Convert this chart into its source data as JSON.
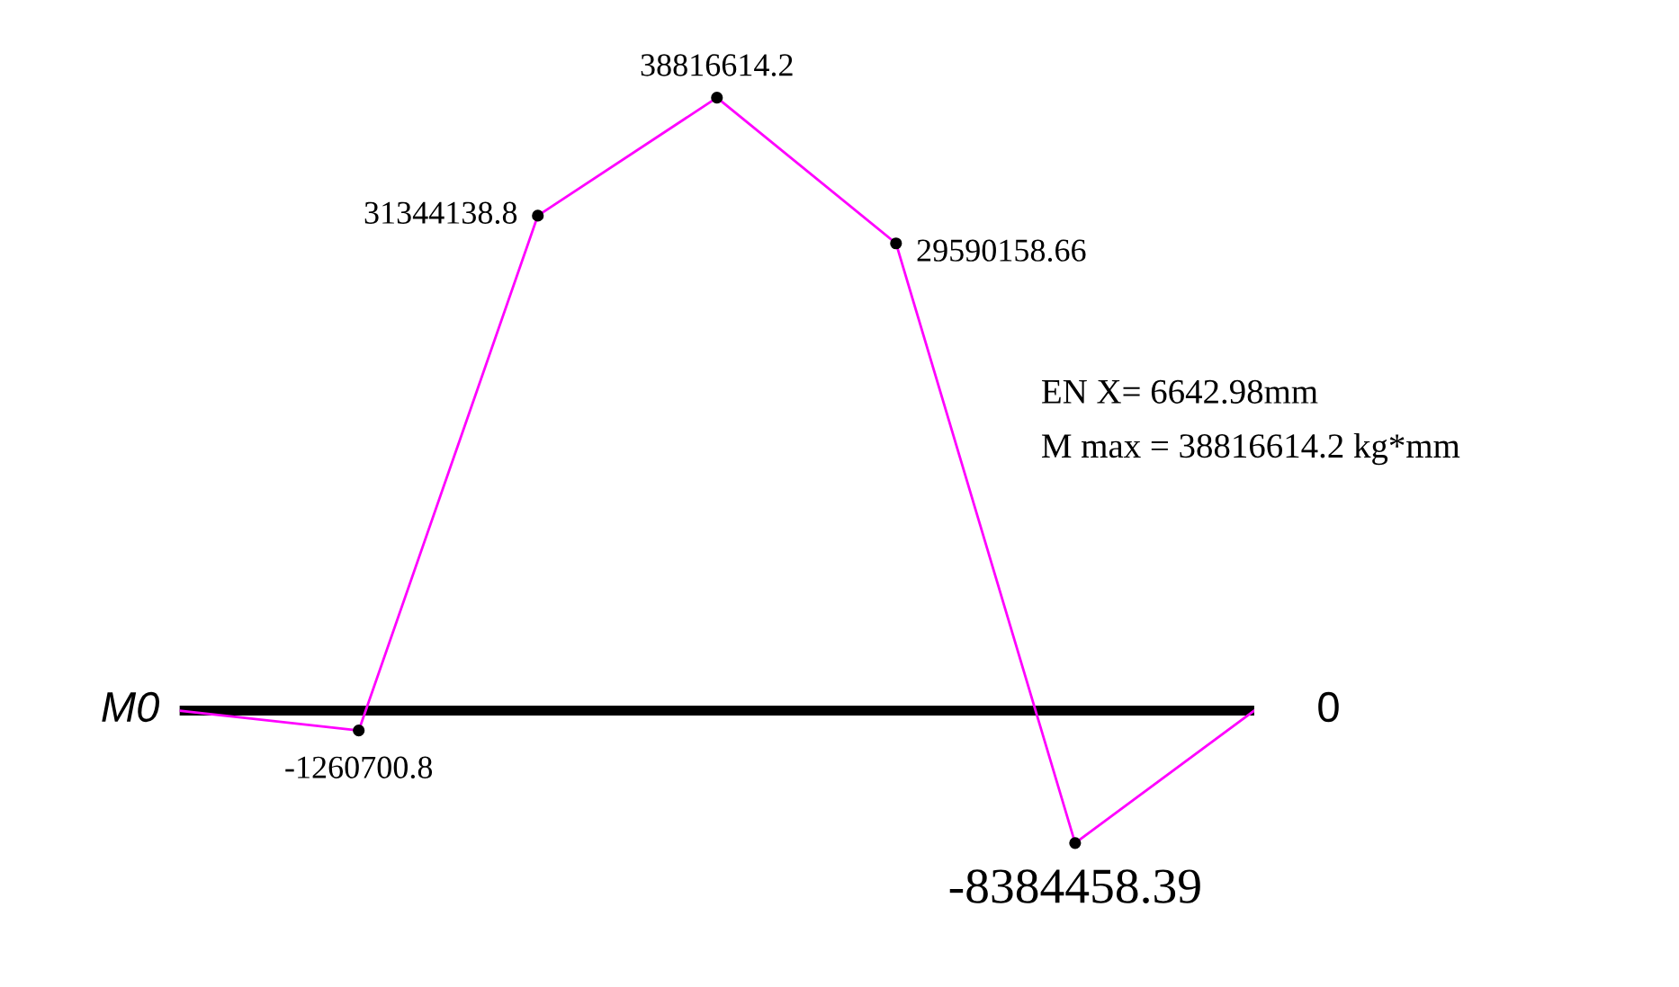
{
  "chart_data": {
    "type": "line",
    "categories": [
      null,
      null,
      null,
      null,
      null,
      null,
      null
    ],
    "series": [
      {
        "color": "#ff00ff",
        "values": [
          0,
          -1260700.8,
          31344138.8,
          38816614.2,
          29590158.66,
          -8384458.39,
          0
        ],
        "value_labels": [
          "M0",
          "-1260700.8",
          "31344138.8",
          "38816614.2",
          "29590158.66",
          "-8384458.39",
          "0"
        ]
      }
    ],
    "marker": "circle",
    "ref_lines": [
      {
        "axis": "y",
        "value": 0,
        "color": "#000000"
      }
    ],
    "annotations": [
      "EN X= 6642.98mm",
      "M max = 38816614.2 kg*mm"
    ]
  }
}
